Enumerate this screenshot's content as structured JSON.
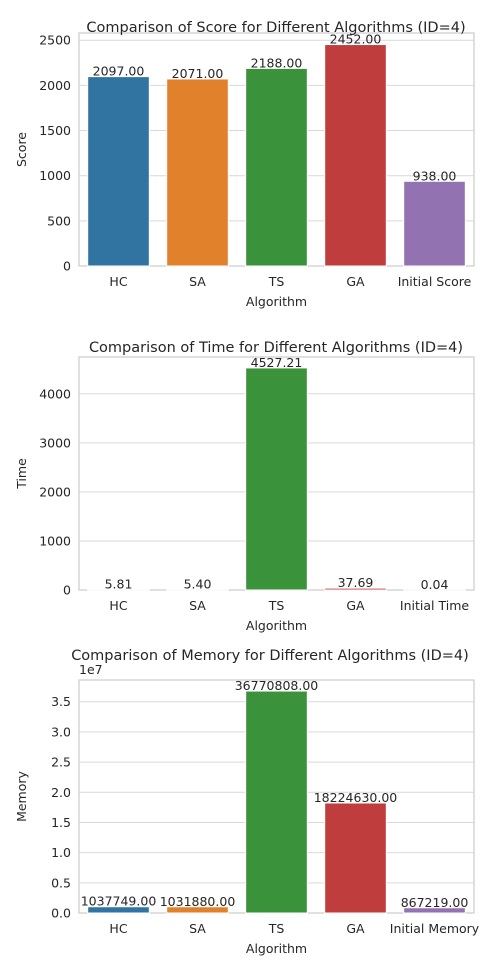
{
  "chart_data": [
    {
      "type": "bar",
      "title": "Comparison of Score for Different Algorithms (ID=4)",
      "xlabel": "Algorithm",
      "ylabel": "Score",
      "categories": [
        "HC",
        "SA",
        "TS",
        "GA",
        "Initial Score"
      ],
      "values": [
        2097.0,
        2071.0,
        2188.0,
        2452.0,
        938.0
      ],
      "value_labels": [
        "2097.00",
        "2071.00",
        "2188.00",
        "2452.00",
        "938.00"
      ],
      "ylim": [
        0,
        2580
      ],
      "yticks": [
        0,
        500,
        1000,
        1500,
        2000,
        2500
      ],
      "ytick_labels": [
        "0",
        "500",
        "1000",
        "1500",
        "2000",
        "2500"
      ],
      "offset_text": "",
      "colors": [
        "#3274a1",
        "#e1812c",
        "#3a923a",
        "#c03d3e",
        "#9372b2"
      ],
      "grid": true
    },
    {
      "type": "bar",
      "title": "Comparison of Time for Different Algorithms (ID=4)",
      "xlabel": "Algorithm",
      "ylabel": "Time",
      "categories": [
        "HC",
        "SA",
        "TS",
        "GA",
        "Initial Time"
      ],
      "values": [
        5.81,
        5.4,
        4527.21,
        37.69,
        0.04
      ],
      "value_labels": [
        "5.81",
        "5.40",
        "4527.21",
        "37.69",
        "0.04"
      ],
      "ylim": [
        0,
        4750
      ],
      "yticks": [
        0,
        1000,
        2000,
        3000,
        4000
      ],
      "ytick_labels": [
        "0",
        "1000",
        "2000",
        "3000",
        "4000"
      ],
      "offset_text": "",
      "colors": [
        "#3274a1",
        "#e1812c",
        "#3a923a",
        "#c03d3e",
        "#9372b2"
      ],
      "grid": true
    },
    {
      "type": "bar",
      "title": "Comparison of Memory for Different Algorithms (ID=4)",
      "xlabel": "Algorithm",
      "ylabel": "Memory",
      "categories": [
        "HC",
        "SA",
        "TS",
        "GA",
        "Initial Memory"
      ],
      "values": [
        1037749.0,
        1031880.0,
        36770808.0,
        18224630.0,
        867219.0
      ],
      "value_labels": [
        "1037749.00",
        "1031880.00",
        "36770808.00",
        "18224630.00",
        "867219.00"
      ],
      "ylim": [
        0,
        38600000
      ],
      "yticks": [
        0,
        5000000,
        10000000,
        15000000,
        20000000,
        25000000,
        30000000,
        35000000
      ],
      "ytick_labels": [
        "0.0",
        "0.5",
        "1.0",
        "1.5",
        "2.0",
        "2.5",
        "3.0",
        "3.5"
      ],
      "offset_text": "1e7",
      "colors": [
        "#3274a1",
        "#e1812c",
        "#3a923a",
        "#c03d3e",
        "#9372b2"
      ],
      "grid": true
    }
  ]
}
